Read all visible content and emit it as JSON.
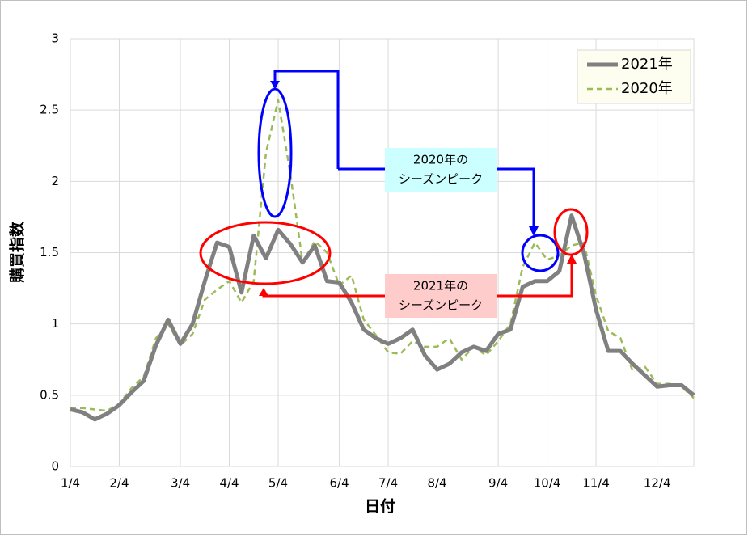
{
  "chart_data": {
    "type": "line",
    "x_label": "日付",
    "y_label": "購買指数",
    "categories": [
      "1/4",
      null,
      null,
      null,
      "2/4",
      null,
      null,
      null,
      null,
      "3/4",
      null,
      null,
      null,
      "4/4",
      null,
      null,
      null,
      "5/4",
      null,
      null,
      null,
      null,
      "6/4",
      null,
      null,
      null,
      "7/4",
      null,
      null,
      null,
      "8/4",
      null,
      null,
      null,
      null,
      "9/4",
      null,
      null,
      null,
      "10/4",
      null,
      null,
      null,
      "11/4",
      null,
      null,
      null,
      null,
      "12/4",
      null,
      null,
      null
    ],
    "series": [
      {
        "name": "2021年",
        "color": "#808080",
        "dash": false,
        "values": [
          0.4,
          0.38,
          0.33,
          0.37,
          0.43,
          0.52,
          0.6,
          0.85,
          1.03,
          0.86,
          1.0,
          1.3,
          1.57,
          1.54,
          1.22,
          1.62,
          1.46,
          1.66,
          1.56,
          1.43,
          1.55,
          1.3,
          1.29,
          1.15,
          0.96,
          0.9,
          0.86,
          0.9,
          0.96,
          0.78,
          0.68,
          0.72,
          0.8,
          0.84,
          0.81,
          0.93,
          0.96,
          1.26,
          1.3,
          1.3,
          1.37,
          1.76,
          1.5,
          1.1,
          0.81,
          0.81,
          0.72,
          0.64,
          0.56,
          0.57,
          0.57,
          0.5
        ]
      },
      {
        "name": "2020年",
        "color": "#9bbb59",
        "dash": true,
        "values": [
          0.41,
          0.41,
          0.4,
          0.39,
          0.44,
          0.55,
          0.63,
          0.9,
          1.0,
          0.85,
          0.93,
          1.17,
          1.24,
          1.3,
          1.15,
          1.3,
          2.2,
          2.57,
          2.05,
          1.43,
          1.58,
          1.5,
          1.27,
          1.34,
          1.03,
          0.92,
          0.8,
          0.79,
          0.88,
          0.84,
          0.84,
          0.9,
          0.75,
          0.84,
          0.78,
          0.88,
          1.0,
          1.4,
          1.57,
          1.45,
          1.48,
          1.55,
          1.57,
          1.2,
          0.95,
          0.9,
          0.67,
          0.7,
          0.58,
          0.58,
          0.56,
          0.48
        ]
      }
    ],
    "ylim": [
      0,
      3
    ],
    "yticks": [
      0,
      0.5,
      1,
      1.5,
      2,
      2.5,
      3
    ],
    "grid": true,
    "legend": "upper right",
    "annotations": [
      {
        "lines": [
          "2020年の",
          "シーズンピーク"
        ],
        "color": "#ccffff"
      },
      {
        "lines": [
          "2021年の",
          "シーズンピーク"
        ],
        "color": "#ffcccc"
      }
    ]
  }
}
